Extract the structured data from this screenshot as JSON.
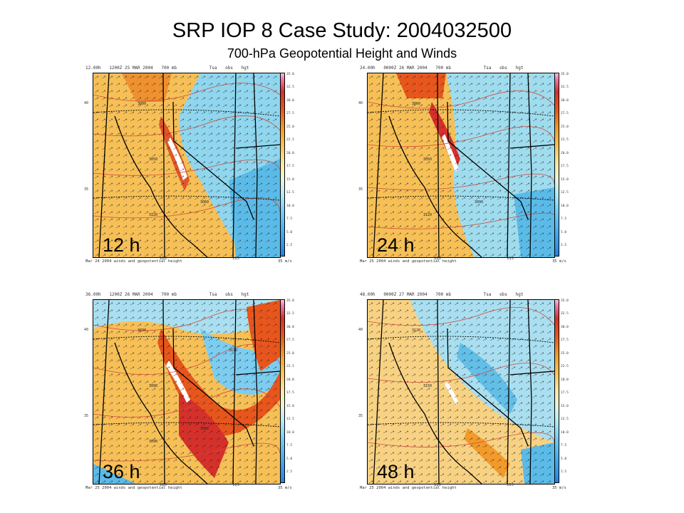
{
  "header": {
    "title": "SRP IOP 8 Case Study: 2004032500",
    "subtitle": "700-hPa Geopotential Height and Winds"
  },
  "colorbar_ticks": [
    "35.0",
    "32.5",
    "30.0",
    "27.5",
    "25.0",
    "22.5",
    "20.0",
    "17.5",
    "15.0",
    "12.5",
    "10.0",
    "7.5",
    "5.0",
    "2.5"
  ],
  "panels": [
    {
      "label": "12 h",
      "top_left": "12.00h",
      "valid": "1200Z 25 MAR 2004",
      "level": "700 mb",
      "top_tsa": "Tsa",
      "top_obs": "obs",
      "top_hgt": "hgt",
      "footer": "Mar 24 2004  winds and geopotential height",
      "lon_left": "120",
      "lon_right": "115",
      "lat_top": "40",
      "lat_bottom": "35",
      "wind_unit": "35 m/s",
      "contours": [
        "3000",
        "3050",
        "3060",
        "3120"
      ]
    },
    {
      "label": "24 h",
      "top_left": "24.00h",
      "valid": "0000Z 26 MAR 2004",
      "level": "700 mb",
      "top_tsa": "Tsa",
      "top_obs": "obs",
      "top_hgt": "hgt",
      "footer": "Mar 25 2004  winds and geopotential height",
      "lon_left": "120",
      "lon_right": "115",
      "lat_top": "40",
      "lat_bottom": "35",
      "wind_unit": "35 m/s",
      "contours": [
        "3060",
        "3050",
        "3090",
        "3120"
      ]
    },
    {
      "label": "36 h",
      "top_left": "36.00h",
      "valid": "1200Z 26 MAR 2004",
      "level": "700 mb",
      "top_tsa": "Tsa",
      "top_obs": "obs",
      "top_hgt": "hgt",
      "footer": "Mar 25 2004  winds and geopotential height",
      "lon_left": "120",
      "lon_right": "115",
      "lat_top": "40",
      "lat_bottom": "35",
      "wind_unit": "35 m/s",
      "contours": [
        "3030",
        "3090",
        "3060",
        "3090",
        "3120"
      ]
    },
    {
      "label": "48 h",
      "top_left": "48.00h",
      "valid": "0000Z 27 MAR 2004",
      "level": "700 mb",
      "top_tsa": "Tsa",
      "top_obs": "obs",
      "top_hgt": "hgt",
      "footer": "Mar 25 2004  winds and geopotential height",
      "lon_left": "120",
      "lon_right": "115",
      "lat_top": "40",
      "lat_bottom": "35",
      "wind_unit": "35 m/s",
      "contours": [
        "3120",
        "3150"
      ]
    }
  ]
}
